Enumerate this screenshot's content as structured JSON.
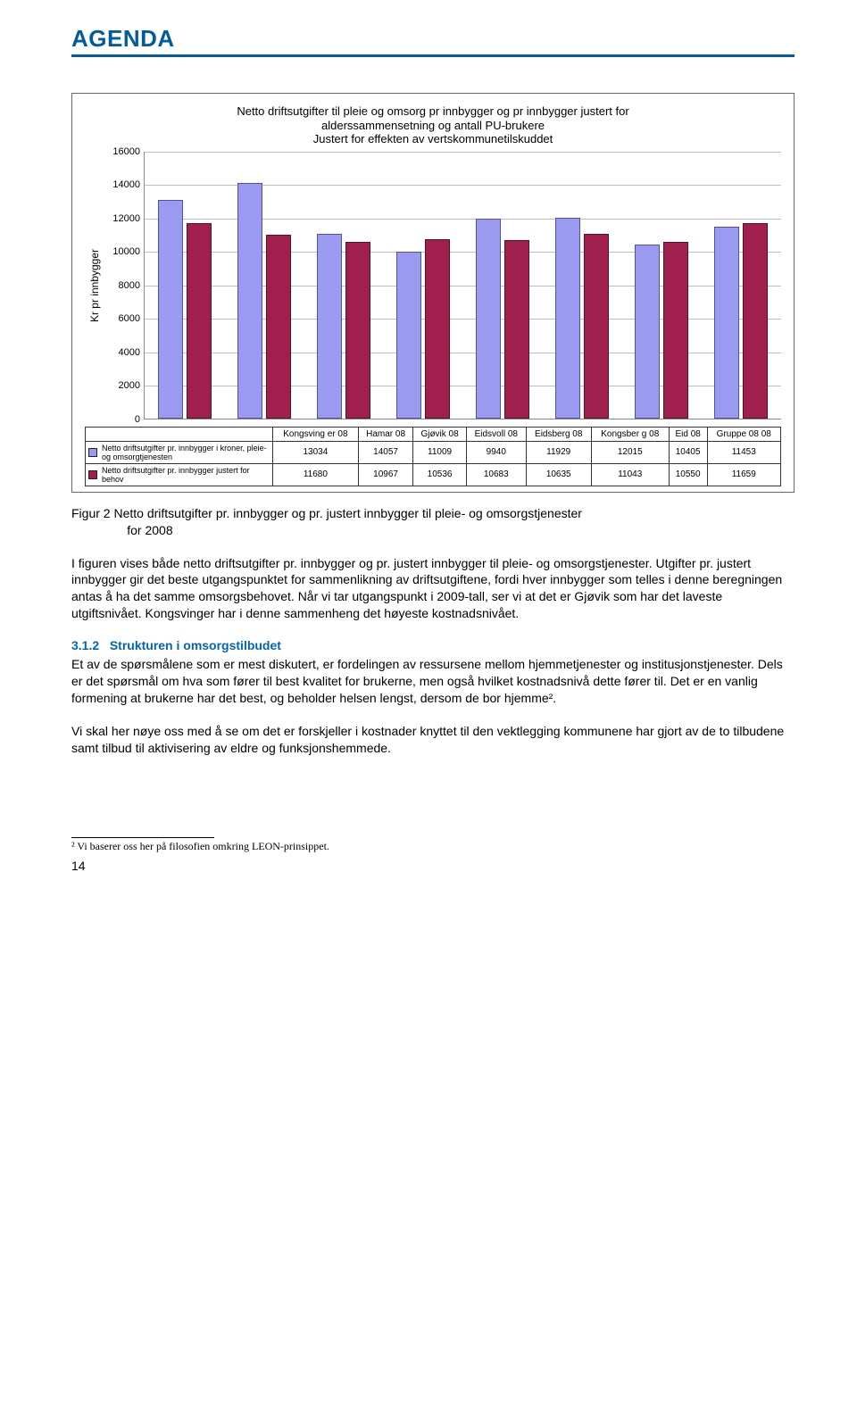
{
  "header": {
    "logo": "AGENDA"
  },
  "chart": {
    "type": "bar",
    "title_line1": "Netto driftsutgifter til pleie og omsorg pr innbygger og pr innbygger justert for",
    "title_line2": "alderssammensetning og antall PU-brukere",
    "title_line3": "Justert for effekten av vertskommunetilskuddet",
    "y_label": "Kr pr innbygger",
    "y_max": 16000,
    "y_step": 2000,
    "categories": [
      "Kongsving er 08",
      "Hamar 08",
      "Gjøvik 08",
      "Eidsvoll 08",
      "Eidsberg 08",
      "Kongsber g 08",
      "Eid 08",
      "Gruppe 08 08"
    ],
    "series": [
      {
        "label": "Netto driftsutgifter pr. innbygger i kroner, pleie- og omsorgtjenesten",
        "color": "#9a9af0",
        "border": "#5050a8",
        "values": [
          13034,
          14057,
          11009,
          9940,
          11929,
          12015,
          10405,
          11453
        ]
      },
      {
        "label": "Netto driftsutgifter pr. innbygger justert for behov",
        "color": "#a01f4c",
        "border": "#5a0f2a",
        "values": [
          11680,
          10967,
          10536,
          10683,
          10635,
          11043,
          10550,
          11659
        ]
      }
    ],
    "grid_color": "#bdbdbd"
  },
  "caption": {
    "prefix": "Figur 2 Netto driftsutgifter pr. innbygger og pr. justert innbygger til pleie- og omsorgstjenester",
    "suffix": "for 2008"
  },
  "paragraphs": {
    "p1": "I figuren vises både netto driftsutgifter pr. innbygger og pr. justert innbygger til pleie- og omsorgstjenester. Utgifter pr. justert innbygger gir det beste utgangspunktet for sammenlikning av driftsutgiftene, fordi hver innbygger som telles i denne beregningen antas å ha det samme omsorgsbehovet. Når vi tar utgangspunkt i 2009-tall, ser vi at det er Gjøvik som har det laveste utgiftsnivået. Kongsvinger har i denne sammenheng det høyeste kostnadsnivået.",
    "heading_num": "3.1.2",
    "heading_text": "Strukturen i omsorgstilbudet",
    "p2": "Et av de spørsmålene som er mest diskutert, er fordelingen av ressursene mellom hjemmetjenester og institusjonstjenester. Dels er det spørsmål om hva som fører til best kvalitet for brukerne, men også hvilket kostnadsnivå dette fører til. Det er en vanlig formening at brukerne har det best, og beholder helsen lengst, dersom de bor hjemme².",
    "p3": "Vi skal her nøye oss med å se om det er forskjeller i kostnader knyttet til den vektlegging kommunene har gjort av de to tilbudene samt tilbud til aktivisering av eldre og funksjonshemmede."
  },
  "footnote": "² Vi baserer oss her på filosofien omkring LEON-prinsippet.",
  "page_number": "14"
}
